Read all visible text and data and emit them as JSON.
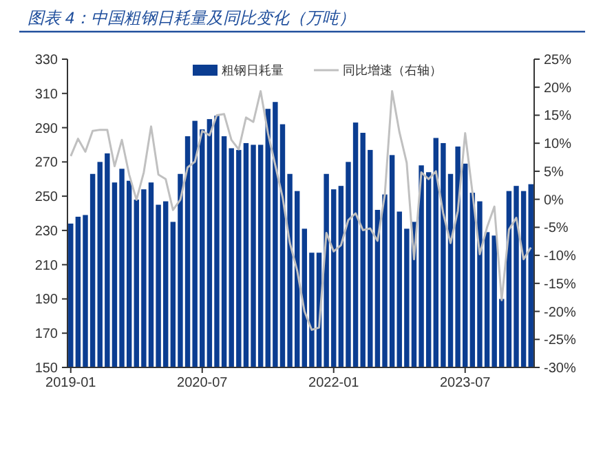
{
  "chart_data": {
    "type": "bar",
    "title": "图表 4：中国粗钢日耗量及同比变化（万吨）",
    "categories": [
      "2019-01",
      null,
      null,
      null,
      null,
      null,
      null,
      null,
      null,
      null,
      null,
      null,
      null,
      null,
      null,
      null,
      null,
      null,
      "2020-07",
      null,
      null,
      null,
      null,
      null,
      null,
      null,
      null,
      null,
      null,
      null,
      null,
      null,
      null,
      null,
      null,
      null,
      "2022-01",
      null,
      null,
      null,
      null,
      null,
      null,
      null,
      null,
      null,
      null,
      null,
      null,
      null,
      null,
      null,
      null,
      null,
      "2023-07",
      null,
      null,
      null,
      null,
      null,
      null,
      null,
      null,
      null
    ],
    "series": [
      {
        "name": "粗钢日耗量",
        "color": "#0b3d91",
        "values": [
          234,
          238,
          239,
          263,
          270,
          275,
          258,
          266,
          259,
          248,
          254,
          258,
          245,
          247,
          235,
          263,
          285,
          294,
          289,
          295,
          297,
          285,
          278,
          277,
          281,
          280,
          280,
          301,
          305,
          292,
          263,
          253,
          231,
          217,
          217,
          263,
          254,
          256,
          270,
          293,
          287,
          277,
          242,
          251,
          274,
          241,
          231,
          235,
          268,
          264,
          284,
          281,
          263,
          279,
          269,
          252,
          247,
          229,
          227,
          190,
          253,
          256,
          253,
          257
        ]
      },
      {
        "name": "同比增速（右轴）",
        "type": "line",
        "axis": "y2",
        "color": "#c0c0c0",
        "values": [
          7.7,
          10.8,
          8.5,
          12.2,
          12.4,
          12.4,
          5.9,
          10.6,
          4.4,
          -0.1,
          4.8,
          13.0,
          4.4,
          3.6,
          -1.9,
          -0.1,
          5.7,
          6.7,
          12.2,
          11.4,
          15.0,
          15.2,
          10.6,
          8.9,
          14.6,
          13.8,
          19.3,
          11.8,
          6.1,
          0.4,
          -7.8,
          -12.7,
          -20.0,
          -23.3,
          -22.9,
          -6.0,
          -9.3,
          -8.2,
          -3.7,
          -2.5,
          -5.5,
          -5.2,
          -7.4,
          0.8,
          19.3,
          12.0,
          6.5,
          -10.7,
          4.8,
          3.6,
          5.0,
          -2.5,
          -7.8,
          -2.1,
          11.8,
          1.2,
          -9.8,
          -5.0,
          -1.3,
          -18.0,
          -5.4,
          -3.3,
          -10.7,
          -8.6
        ]
      }
    ],
    "ylim": [
      150,
      330
    ],
    "yticks": [
      150,
      170,
      190,
      210,
      230,
      250,
      270,
      290,
      310,
      330
    ],
    "y2lim": [
      -30,
      25
    ],
    "y2ticks": [
      {
        "value": -30,
        "label": "-30%"
      },
      {
        "value": -25,
        "label": "-25%"
      },
      {
        "value": -20,
        "label": "-20%"
      },
      {
        "value": -15,
        "label": "-15%"
      },
      {
        "value": -10,
        "label": "-10%"
      },
      {
        "value": -5,
        "label": "-5%"
      },
      {
        "value": 0,
        "label": "0%"
      },
      {
        "value": 5,
        "label": "5%"
      },
      {
        "value": 10,
        "label": "10%"
      },
      {
        "value": 15,
        "label": "15%"
      },
      {
        "value": 20,
        "label": "20%"
      },
      {
        "value": 25,
        "label": "25%"
      }
    ],
    "legend": "top",
    "grid": false
  }
}
